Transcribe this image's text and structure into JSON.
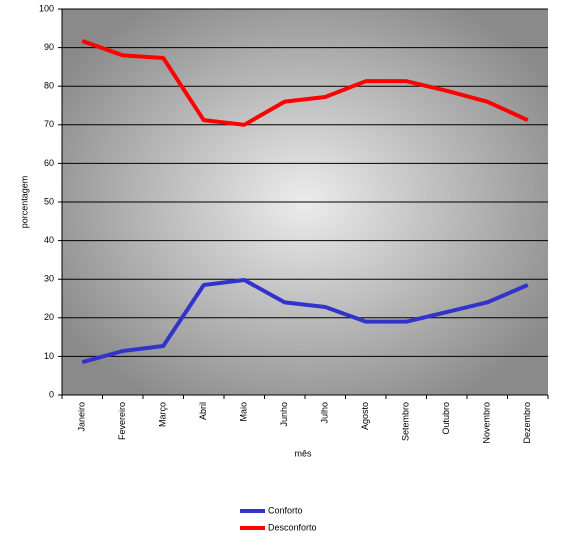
{
  "chart_data": {
    "type": "line",
    "x_label": "mês",
    "y_label": "porcentagem",
    "categories": [
      "Janeiro",
      "Fevereiro",
      "Março",
      "Abril",
      "Maio",
      "Junho",
      "Julho",
      "Agosto",
      "Setembro",
      "Outubro",
      "Novembro",
      "Dezembro"
    ],
    "series": [
      {
        "name": "Conforto",
        "color": "#3333cc",
        "values": [
          8.5,
          11.4,
          12.7,
          28.5,
          29.8,
          24,
          22.8,
          19,
          19,
          21.5,
          24,
          28.5
        ]
      },
      {
        "name": "Desconforto",
        "color": "#ff0000",
        "values": [
          91.7,
          88,
          87.3,
          71.2,
          70,
          76,
          77.2,
          81.3,
          81.3,
          78.8,
          76,
          71.2
        ]
      }
    ],
    "ylim": [
      0,
      100
    ],
    "yticks": [
      0,
      10,
      20,
      30,
      40,
      50,
      60,
      70,
      80,
      90,
      100
    ],
    "grid": true
  }
}
